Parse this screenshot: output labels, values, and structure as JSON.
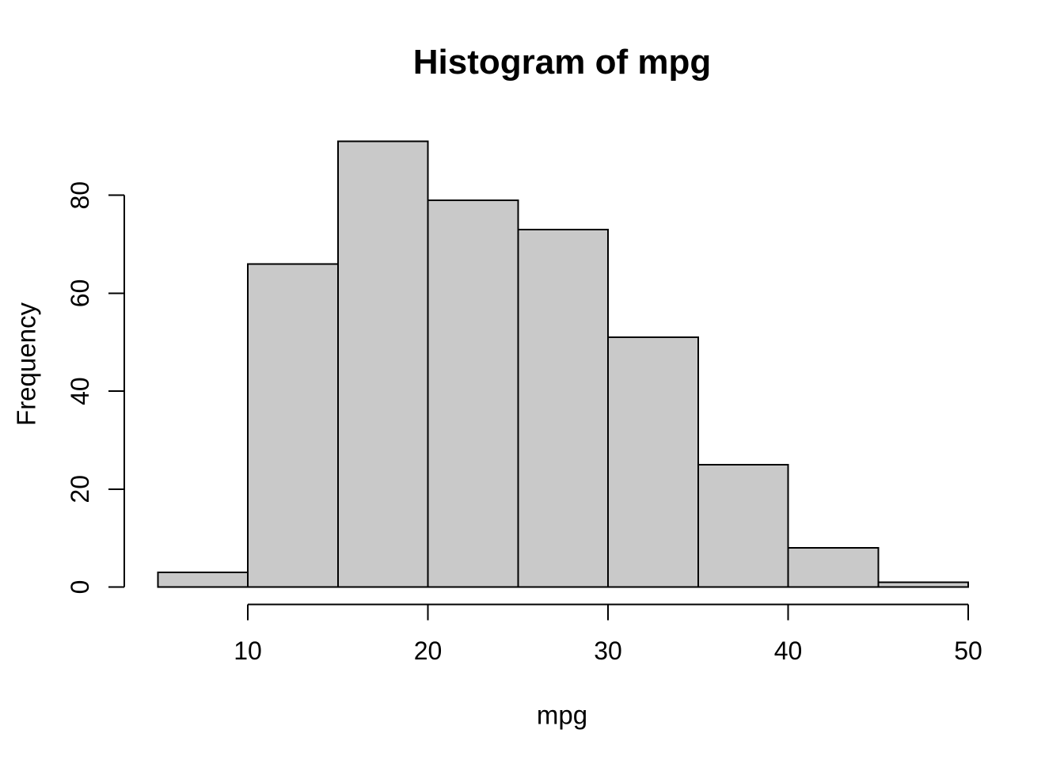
{
  "chart_data": {
    "type": "bar",
    "subtype": "histogram",
    "title": "Histogram of mpg",
    "xlabel": "mpg",
    "ylabel": "Frequency",
    "bin_edges": [
      5,
      10,
      15,
      20,
      25,
      30,
      35,
      40,
      45,
      50
    ],
    "counts": [
      3,
      66,
      91,
      79,
      73,
      51,
      25,
      8,
      1
    ],
    "x_ticks": [
      10,
      20,
      30,
      40,
      50
    ],
    "y_ticks": [
      0,
      20,
      40,
      60,
      80
    ],
    "xlim": [
      5,
      50
    ],
    "ylim": [
      0,
      91
    ],
    "grid": false,
    "legend": false,
    "bar_fill_color": "#C9C9C9",
    "bar_border_color": "#000000",
    "axis_color": "#000000",
    "text_color": "#000000",
    "background_color": "#FFFFFF"
  }
}
